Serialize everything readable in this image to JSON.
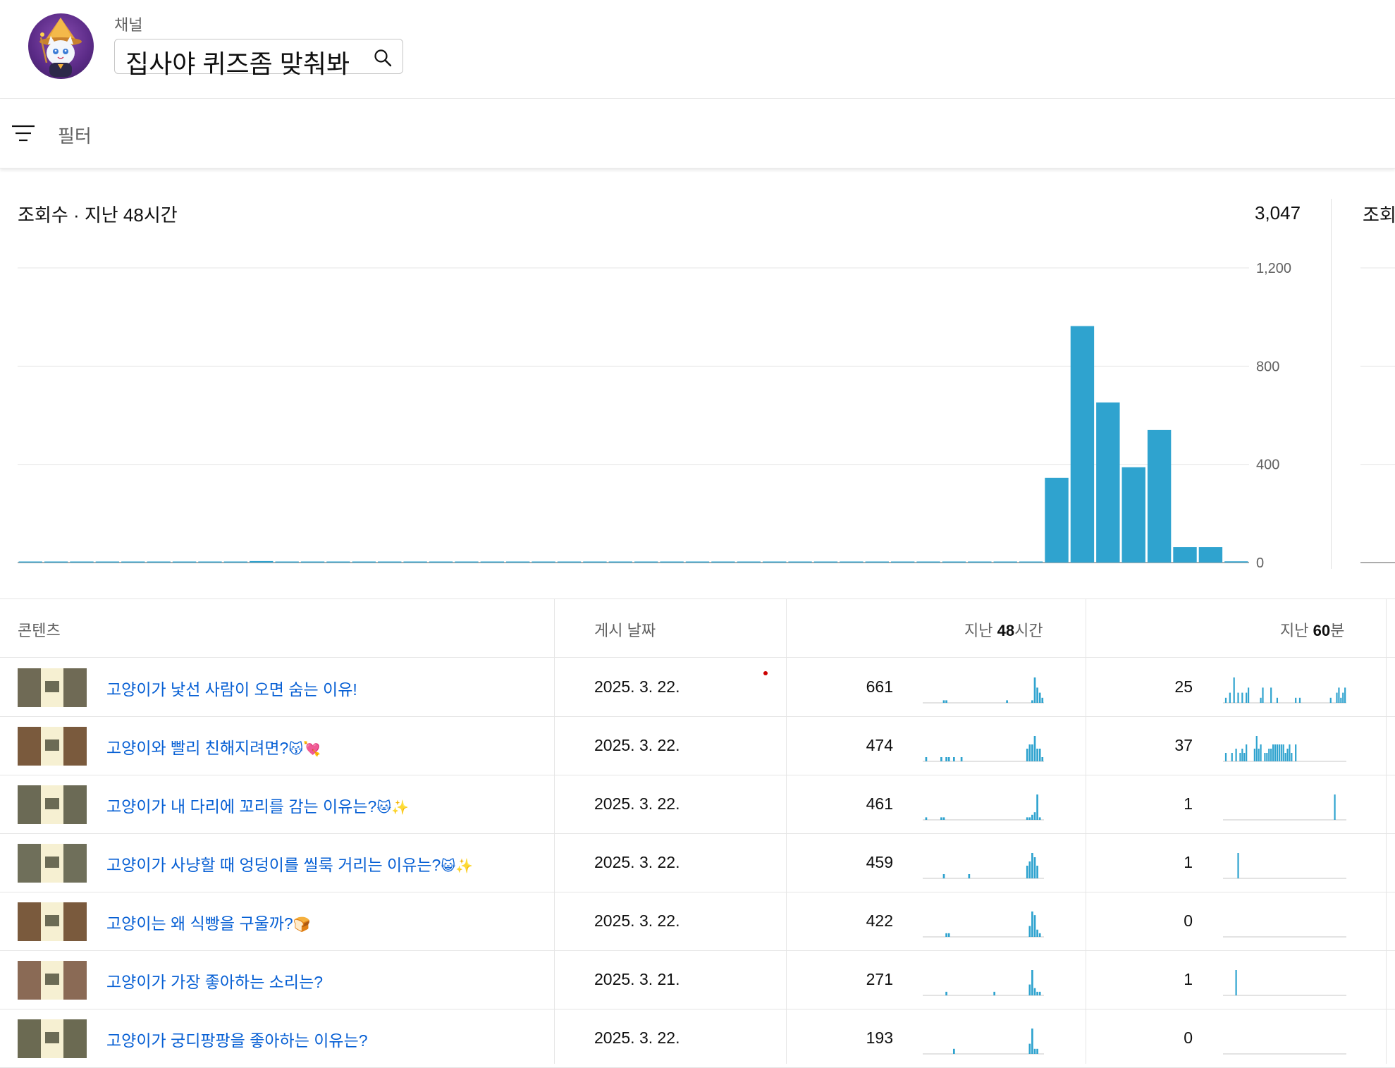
{
  "header": {
    "channel_label": "채널",
    "channel_name": "집사야 퀴즈좀 맞춰봐"
  },
  "filter": {
    "label": "필터"
  },
  "chart_title": "조회수 · 지난 48시간",
  "chart_total": "3,047",
  "chart2_title": "조회",
  "chart_data": {
    "type": "bar",
    "title": "조회수 · 지난 48시간",
    "yticks": [
      "1,200",
      "800",
      "400",
      "0"
    ],
    "ylim": [
      0,
      1200
    ],
    "ytick_values": [
      1200,
      800,
      400,
      0
    ],
    "grid": true,
    "values": [
      3,
      0,
      0,
      0,
      0,
      0,
      0,
      3,
      0,
      6,
      0,
      3,
      3,
      0,
      3,
      3,
      0,
      3,
      0,
      3,
      0,
      0,
      0,
      0,
      0,
      0,
      0,
      3,
      0,
      0,
      0,
      0,
      3,
      0,
      0,
      0,
      0,
      0,
      0,
      3,
      345,
      963,
      652,
      388,
      540,
      63,
      63,
      5
    ]
  },
  "table": {
    "headers": {
      "content": "콘텐츠",
      "date": "게시 날짜",
      "last48_prefix": "지난 ",
      "last48_bold": "48",
      "last48_suffix": "시간",
      "last60_prefix": "지난 ",
      "last60_bold": "60",
      "last60_suffix": "분"
    },
    "rows": [
      {
        "title": "고양이가 낯선 사람이 오면 숨는 이유!",
        "emoji": "",
        "date": "2025. 3. 22.",
        "views48": "661",
        "views60": "25",
        "spark48": [
          0,
          0,
          0,
          0,
          0,
          0,
          0,
          0,
          1,
          1,
          0,
          0,
          0,
          0,
          0,
          0,
          0,
          0,
          0,
          0,
          0,
          0,
          0,
          0,
          0,
          0,
          0,
          0,
          0,
          0,
          0,
          0,
          0,
          1,
          0,
          0,
          0,
          0,
          0,
          0,
          0,
          0,
          0,
          1,
          10,
          6,
          4,
          2
        ],
        "spark60": [
          0,
          1,
          0,
          2,
          0,
          5,
          0,
          2,
          0,
          2,
          0,
          2,
          3,
          0,
          0,
          0,
          0,
          0,
          1,
          3,
          0,
          0,
          0,
          3,
          0,
          0,
          1,
          0,
          0,
          0,
          0,
          0,
          0,
          0,
          0,
          1,
          0,
          1,
          0,
          0,
          0,
          0,
          0,
          0,
          0,
          0,
          0,
          0,
          0,
          0,
          0,
          0,
          1,
          0,
          0,
          2,
          3,
          1,
          2,
          3
        ]
      },
      {
        "title": "고양이와 빨리 친해지려면?",
        "emoji": "😽💘",
        "date": "2025. 3. 22.",
        "views48": "474",
        "views60": "37",
        "spark48": [
          0,
          1,
          0,
          0,
          0,
          0,
          0,
          1,
          0,
          1,
          1,
          0,
          1,
          0,
          0,
          1,
          0,
          0,
          0,
          0,
          0,
          0,
          0,
          0,
          0,
          0,
          0,
          0,
          0,
          0,
          0,
          0,
          0,
          0,
          0,
          0,
          0,
          0,
          0,
          0,
          0,
          3,
          4,
          4,
          6,
          3,
          3,
          1
        ],
        "spark60": [
          0,
          2,
          0,
          0,
          2,
          0,
          3,
          0,
          2,
          3,
          2,
          4,
          0,
          0,
          0,
          3,
          6,
          3,
          4,
          0,
          2,
          2,
          3,
          3,
          4,
          4,
          4,
          4,
          4,
          4,
          2,
          3,
          4,
          2,
          0,
          4,
          0,
          0,
          0,
          0,
          0,
          0,
          0,
          0,
          0,
          0,
          0,
          0,
          0,
          0,
          0,
          0,
          0,
          0,
          0,
          0,
          0,
          0,
          0,
          0
        ]
      },
      {
        "title": "고양이가 내 다리에 꼬리를 감는 이유는?",
        "emoji": "🐱✨",
        "date": "2025. 3. 22.",
        "views48": "461",
        "views60": "1",
        "spark48": [
          0,
          1,
          0,
          0,
          0,
          0,
          0,
          1,
          1,
          0,
          0,
          0,
          0,
          0,
          0,
          0,
          0,
          0,
          0,
          0,
          0,
          0,
          0,
          0,
          0,
          0,
          0,
          0,
          0,
          0,
          0,
          0,
          0,
          0,
          0,
          0,
          0,
          0,
          0,
          0,
          0,
          1,
          1,
          2,
          3,
          10,
          1,
          0
        ],
        "spark60": [
          0,
          0,
          0,
          0,
          0,
          0,
          0,
          0,
          0,
          0,
          0,
          0,
          0,
          0,
          0,
          0,
          0,
          0,
          0,
          0,
          0,
          0,
          0,
          0,
          0,
          0,
          0,
          0,
          0,
          0,
          0,
          0,
          0,
          0,
          0,
          0,
          0,
          0,
          0,
          0,
          0,
          0,
          0,
          0,
          0,
          0,
          0,
          0,
          0,
          0,
          0,
          0,
          0,
          0,
          3,
          0,
          0,
          0,
          0,
          0
        ]
      },
      {
        "title": "고양이가 사냥할 때 엉덩이를 씰룩 거리는 이유는?",
        "emoji": "😺✨",
        "date": "2025. 3. 22.",
        "views48": "459",
        "views60": "1",
        "spark48": [
          0,
          0,
          0,
          0,
          0,
          0,
          0,
          0,
          1,
          0,
          0,
          0,
          0,
          0,
          0,
          0,
          0,
          0,
          1,
          0,
          0,
          0,
          0,
          0,
          0,
          0,
          0,
          0,
          0,
          0,
          0,
          0,
          0,
          0,
          0,
          0,
          0,
          0,
          0,
          0,
          0,
          3,
          4,
          6,
          5,
          3,
          0,
          0
        ],
        "spark60": [
          0,
          0,
          0,
          0,
          0,
          0,
          0,
          3,
          0,
          0,
          0,
          0,
          0,
          0,
          0,
          0,
          0,
          0,
          0,
          0,
          0,
          0,
          0,
          0,
          0,
          0,
          0,
          0,
          0,
          0,
          0,
          0,
          0,
          0,
          0,
          0,
          0,
          0,
          0,
          0,
          0,
          0,
          0,
          0,
          0,
          0,
          0,
          0,
          0,
          0,
          0,
          0,
          0,
          0,
          0,
          0,
          0,
          0,
          0,
          0
        ]
      },
      {
        "title": "고양이는 왜 식빵을 구울까?",
        "emoji": "🍞",
        "date": "2025. 3. 22.",
        "views48": "422",
        "views60": "0",
        "spark48": [
          0,
          0,
          0,
          0,
          0,
          0,
          0,
          0,
          0,
          1,
          1,
          0,
          0,
          0,
          0,
          0,
          0,
          0,
          0,
          0,
          0,
          0,
          0,
          0,
          0,
          0,
          0,
          0,
          0,
          0,
          0,
          0,
          0,
          0,
          0,
          0,
          0,
          0,
          0,
          0,
          0,
          0,
          3,
          7,
          6,
          2,
          1,
          0
        ],
        "spark60": [
          0,
          0,
          0,
          0,
          0,
          0,
          0,
          0,
          0,
          0,
          0,
          0,
          0,
          0,
          0,
          0,
          0,
          0,
          0,
          0,
          0,
          0,
          0,
          0,
          0,
          0,
          0,
          0,
          0,
          0,
          0,
          0,
          0,
          0,
          0,
          0,
          0,
          0,
          0,
          0,
          0,
          0,
          0,
          0,
          0,
          0,
          0,
          0,
          0,
          0,
          0,
          0,
          0,
          0,
          0,
          0,
          0,
          0,
          0,
          0
        ]
      },
      {
        "title": "고양이가 가장 좋아하는 소리는?",
        "emoji": "",
        "date": "2025. 3. 21.",
        "views48": "271",
        "views60": "1",
        "spark48": [
          0,
          0,
          0,
          0,
          0,
          0,
          0,
          0,
          0,
          1,
          0,
          0,
          0,
          0,
          0,
          0,
          0,
          0,
          0,
          0,
          0,
          0,
          0,
          0,
          0,
          0,
          0,
          0,
          1,
          0,
          0,
          0,
          0,
          0,
          0,
          0,
          0,
          0,
          0,
          0,
          0,
          0,
          3,
          7,
          2,
          1,
          1,
          0
        ],
        "spark60": [
          0,
          0,
          0,
          0,
          0,
          0,
          3,
          0,
          0,
          0,
          0,
          0,
          0,
          0,
          0,
          0,
          0,
          0,
          0,
          0,
          0,
          0,
          0,
          0,
          0,
          0,
          0,
          0,
          0,
          0,
          0,
          0,
          0,
          0,
          0,
          0,
          0,
          0,
          0,
          0,
          0,
          0,
          0,
          0,
          0,
          0,
          0,
          0,
          0,
          0,
          0,
          0,
          0,
          0,
          0,
          0,
          0,
          0,
          0,
          0
        ]
      },
      {
        "title": "고양이가 궁디팡팡을 좋아하는 이유는?",
        "emoji": "",
        "date": "2025. 3. 22.",
        "views48": "193",
        "views60": "0",
        "spark48": [
          0,
          0,
          0,
          0,
          0,
          0,
          0,
          0,
          0,
          0,
          0,
          0,
          1,
          0,
          0,
          0,
          0,
          0,
          0,
          0,
          0,
          0,
          0,
          0,
          0,
          0,
          0,
          0,
          0,
          0,
          0,
          0,
          0,
          0,
          0,
          0,
          0,
          0,
          0,
          0,
          0,
          0,
          2,
          5,
          1,
          1,
          0,
          0
        ],
        "spark60": [
          0,
          0,
          0,
          0,
          0,
          0,
          0,
          0,
          0,
          0,
          0,
          0,
          0,
          0,
          0,
          0,
          0,
          0,
          0,
          0,
          0,
          0,
          0,
          0,
          0,
          0,
          0,
          0,
          0,
          0,
          0,
          0,
          0,
          0,
          0,
          0,
          0,
          0,
          0,
          0,
          0,
          0,
          0,
          0,
          0,
          0,
          0,
          0,
          0,
          0,
          0,
          0,
          0,
          0,
          0,
          0,
          0,
          0,
          0,
          0
        ]
      }
    ]
  },
  "colors": {
    "bar": "#2fa3cf",
    "link": "#065fd4",
    "thumb_bgs": [
      "#6f6a55",
      "#7a5a3d",
      "#6b6a55",
      "#6f6f5a",
      "#7a5a3d",
      "#8a6a55",
      "#6b6a52"
    ]
  }
}
